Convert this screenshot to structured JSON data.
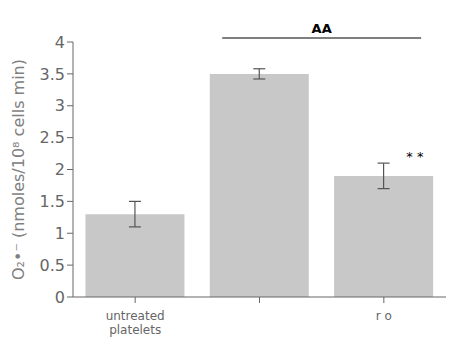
{
  "chart_data": {
    "type": "bar",
    "categories": [
      "untreated\nplatelets",
      null,
      "r o"
    ],
    "values": [
      1.3,
      3.5,
      1.9
    ],
    "errors": [
      0.2,
      0.08,
      0.2
    ],
    "color": "#c8c8c8",
    "ylabel": "O₂•⁻ (nmoles/10⁸ cells min)",
    "ylim": [
      0,
      4
    ],
    "yticks": [
      0,
      0.5,
      1,
      1.5,
      2,
      2.5,
      3,
      3.5,
      4
    ],
    "annotations": [
      {
        "text": "AA"
      },
      {
        "text": "* *"
      }
    ]
  }
}
